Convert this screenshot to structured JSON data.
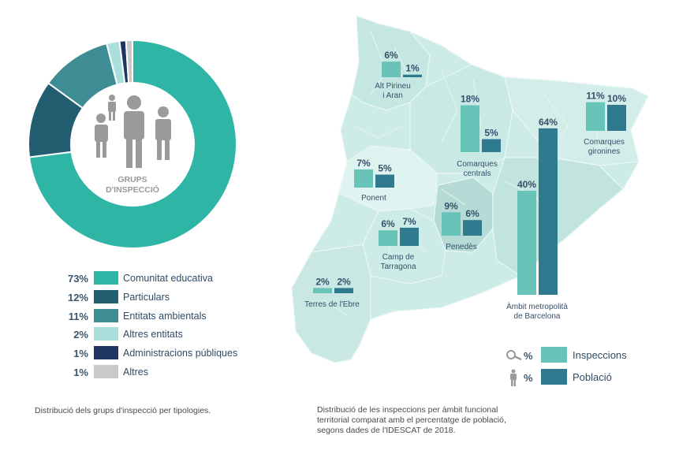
{
  "colors": {
    "comunitat": "#2fb5a5",
    "particulars": "#235d70",
    "ambientals": "#3e8c94",
    "altres_entitats": "#a9e0dc",
    "administracions": "#1d3560",
    "altres": "#c9c9c9",
    "inspeccions": "#68c3b9",
    "poblacio": "#2f7a8e",
    "map_fill": "#cdebe7",
    "map_dark": "#b6dbd6",
    "icon_gray": "#9a9a9a"
  },
  "center_label": [
    "GRUPS",
    "D'INSPECCIÓ"
  ],
  "left_caption": "Distribució dels grups d'inspecció per tipologies.",
  "right_caption": [
    "Distribució de les inspeccions per àmbit funcional",
    "territorial comparat amb el percentatge de població,",
    "segons dades de l'IDESCAT de 2018."
  ],
  "chart_legend": {
    "inspeccions_pct": "%",
    "inspeccions_label": "Inspeccions",
    "poblacio_pct": "%",
    "poblacio_label": "Població",
    "inspeccions_icon": "magnifier-icon",
    "poblacio_icon": "person-icon"
  },
  "chart_data": [
    {
      "type": "pie",
      "categories": [
        "Comunitat educativa",
        "Particulars",
        "Entitats ambientals",
        "Altres entitats",
        "Administracions públiques",
        "Altres"
      ],
      "values": [
        73,
        12,
        11,
        2,
        1,
        1
      ],
      "value_labels": [
        "73%",
        "12%",
        "11%",
        "2%",
        "1%",
        "1%"
      ],
      "colors": [
        "#2fb5a5",
        "#235d70",
        "#3e8c94",
        "#a9e0dc",
        "#1d3560",
        "#c9c9c9"
      ],
      "legend_position": "bottom"
    },
    {
      "type": "bar",
      "categories": [
        "Alt Pirineu i Aran",
        "Comarques centrals",
        "Comarques gironines",
        "Ponent",
        "Penedès",
        "Camp de Tarragona",
        "Àmbit metropolità de Barcelona",
        "Terres de l'Ebre"
      ],
      "category_lines": [
        [
          "Alt Pirineu",
          "i Aran"
        ],
        [
          "Comarques",
          "centrals"
        ],
        [
          "Comarques",
          "gironines"
        ],
        [
          "Ponent"
        ],
        [
          "Penedès"
        ],
        [
          "Camp de",
          "Tarragona"
        ],
        [
          "Àmbit metropolità",
          "de Barcelona"
        ],
        [
          "Terres de l'Ebre"
        ]
      ],
      "series": [
        {
          "name": "Inspeccions",
          "values": [
            6,
            18,
            11,
            7,
            9,
            6,
            40,
            2
          ],
          "labels": [
            "6%",
            "18%",
            "11%",
            "7%",
            "9%",
            "6%",
            "40%",
            "2%"
          ]
        },
        {
          "name": "Població",
          "values": [
            1,
            5,
            10,
            5,
            6,
            7,
            64,
            2
          ],
          "labels": [
            "1%",
            "5%",
            "10%",
            "5%",
            "6%",
            "7%",
            "64%",
            "2%"
          ]
        }
      ],
      "legend_position": "bottom-right"
    }
  ]
}
